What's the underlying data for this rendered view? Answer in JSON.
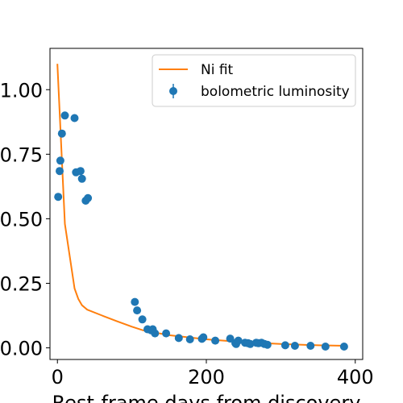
{
  "chart_data": {
    "type": "scatter",
    "xlabel": "Rest-frame days from discovery",
    "ylabel": "",
    "xlim": [
      -10,
      410
    ],
    "ylim": [
      -0.045,
      1.16
    ],
    "xticks": [
      0,
      200,
      400
    ],
    "yticks": [
      0.0,
      0.25,
      0.5,
      0.75,
      1.0
    ],
    "xtick_labels": [
      "0",
      "200",
      "400"
    ],
    "ytick_labels": [
      "0.00",
      "0.25",
      "0.50",
      "0.75",
      "1.00"
    ],
    "legend_position": "upper right",
    "series": [
      {
        "name": "Ni fit",
        "kind": "line",
        "color": "#ff7f0e",
        "x": [
          0,
          10,
          23,
          28,
          33,
          40,
          60,
          80,
          100,
          115,
          150,
          200,
          250,
          300,
          350,
          385
        ],
        "y": [
          1.1,
          0.48,
          0.23,
          0.19,
          0.165,
          0.148,
          0.125,
          0.103,
          0.082,
          0.068,
          0.049,
          0.033,
          0.022,
          0.015,
          0.01,
          0.008
        ]
      },
      {
        "name": "bolometric luminosity",
        "kind": "scatter",
        "color": "#1f77b4",
        "x": [
          1,
          3,
          4,
          6,
          10,
          23,
          25,
          31,
          33,
          38,
          41,
          104,
          107,
          114,
          121,
          126,
          128,
          131,
          146,
          163,
          178,
          194,
          196,
          212,
          232,
          239,
          240,
          243,
          252,
          256,
          259,
          267,
          270,
          274,
          278,
          282,
          306,
          319,
          340,
          360,
          385
        ],
        "y": [
          0.585,
          0.685,
          0.725,
          0.83,
          0.9,
          0.89,
          0.68,
          0.685,
          0.655,
          0.57,
          0.58,
          0.178,
          0.145,
          0.11,
          0.072,
          0.068,
          0.072,
          0.056,
          0.056,
          0.038,
          0.033,
          0.035,
          0.041,
          0.028,
          0.036,
          0.018,
          0.015,
          0.028,
          0.02,
          0.018,
          0.015,
          0.02,
          0.018,
          0.02,
          0.015,
          0.012,
          0.01,
          0.008,
          0.008,
          0.005,
          0.005
        ]
      }
    ]
  }
}
